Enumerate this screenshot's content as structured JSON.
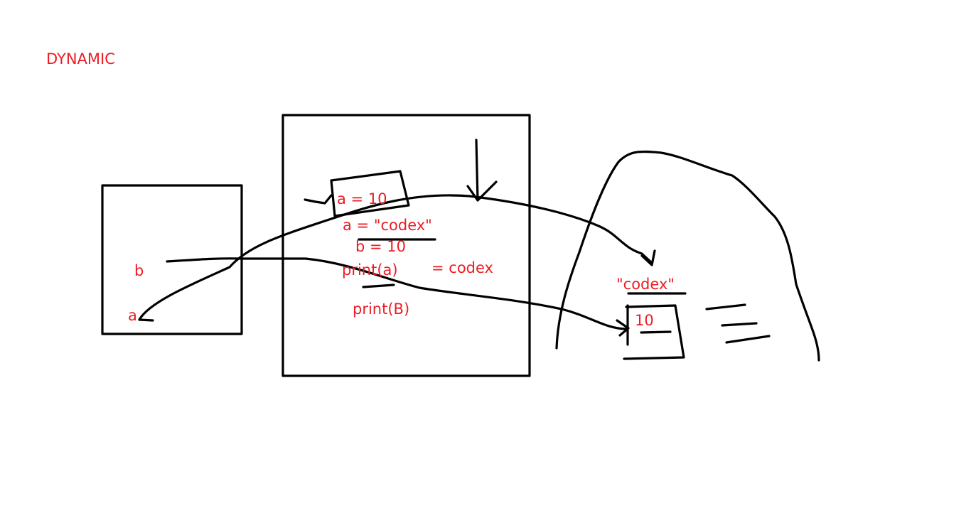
{
  "title": "DYNAMIC",
  "stack_frame": {
    "vars": [
      "b",
      "a"
    ]
  },
  "code_block": {
    "lines": [
      "a = 10",
      "a = \"codex\"",
      "b = 10",
      "print(a)",
      "= codex",
      "print(B)"
    ]
  },
  "heap": {
    "objects": [
      "\"codex\"",
      "10"
    ]
  },
  "colors": {
    "text": "#ed1c24",
    "ink": "#000000",
    "background": "#ffffff"
  }
}
